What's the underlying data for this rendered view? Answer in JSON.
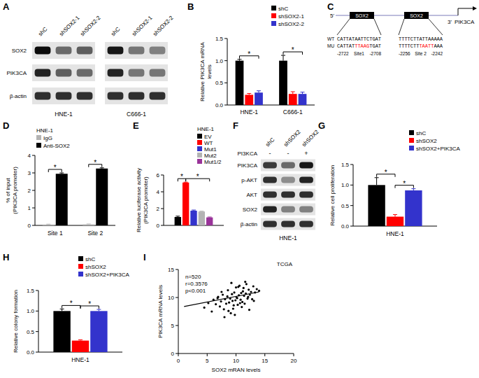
{
  "chart_data": [
    {
      "panel": "B",
      "type": "bar",
      "categories": [
        "HNE-1",
        "C666-1"
      ],
      "series": [
        {
          "name": "shC",
          "color": "#000000",
          "values": [
            1.0,
            1.0
          ],
          "errors": [
            0.03,
            0.12
          ]
        },
        {
          "name": "shSOX2-1",
          "color": "#ff0000",
          "values": [
            0.23,
            0.25
          ],
          "errors": [
            0.03,
            0.05
          ]
        },
        {
          "name": "shSOX2-2",
          "color": "#3333cc",
          "values": [
            0.28,
            0.25
          ],
          "errors": [
            0.04,
            0.04
          ]
        }
      ],
      "ylabel": [
        "Relative PIK3CA mRNA",
        "levels"
      ],
      "ylim": [
        0,
        1.5
      ],
      "yticks": [
        {
          "value": 0,
          "label": "0.0"
        },
        {
          "value": 0.5,
          "label": "0.5"
        },
        {
          "value": 1,
          "label": "1.0"
        },
        {
          "value": 1.5,
          "label": "1.5"
        }
      ],
      "legend": "upper right",
      "brackets": [
        {
          "from": [
            0,
            0
          ],
          "to": [
            0,
            2
          ],
          "label": "*"
        },
        {
          "from": [
            1,
            0
          ],
          "to": [
            1,
            2
          ],
          "label": "*"
        }
      ]
    },
    {
      "panel": "D",
      "type": "bar",
      "title": "HNE-1",
      "categories": [
        "Site 1",
        "Site 2"
      ],
      "series": [
        {
          "name": "IgG",
          "color": "#b3b3b3",
          "values": [
            0.05,
            0.06
          ],
          "errors": [
            0.02,
            0.02
          ]
        },
        {
          "name": "Anti-SOX2",
          "color": "#000000",
          "values": [
            2.95,
            3.25
          ],
          "errors": [
            0.05,
            0.04
          ]
        }
      ],
      "ylabel": [
        "% of input",
        "(PIK3CA promoter)"
      ],
      "ylim": [
        0,
        4
      ],
      "yticks": [
        0,
        1,
        2,
        3,
        4
      ],
      "legend": "upper left",
      "brackets": [
        {
          "from": [
            0,
            0
          ],
          "to": [
            0,
            1
          ],
          "label": "*"
        },
        {
          "from": [
            1,
            0
          ],
          "to": [
            1,
            1
          ],
          "label": "*"
        }
      ]
    },
    {
      "panel": "E",
      "type": "bar",
      "title": "HNE-1",
      "categories": [
        null
      ],
      "series": [
        {
          "name": "EV",
          "color": "#000000",
          "values": [
            1.0
          ],
          "errors": [
            0.1
          ]
        },
        {
          "name": "WT",
          "color": "#ff0000",
          "values": [
            5.1
          ],
          "errors": [
            0.05
          ]
        },
        {
          "name": "Mut1",
          "color": "#3333cc",
          "values": [
            1.75
          ],
          "errors": [
            0.08
          ]
        },
        {
          "name": "Mut2",
          "color": "#b3b3b3",
          "values": [
            1.65
          ],
          "errors": [
            0.05
          ]
        },
        {
          "name": "Mut1/2",
          "color": "#993399",
          "values": [
            0.95
          ],
          "errors": [
            0.05
          ]
        }
      ],
      "ylabel": [
        "Relative luciferase activity",
        "(PIK3CA promoter)"
      ],
      "ylim": [
        0,
        6
      ],
      "yticks": [
        0,
        2,
        4,
        6
      ],
      "legend": "upper right",
      "tick_labels": "y",
      "brackets": [
        {
          "from": [
            0,
            0
          ],
          "to": [
            0,
            1
          ],
          "label": "*"
        },
        {
          "from": [
            0,
            1
          ],
          "to": [
            0,
            4
          ],
          "label": "*"
        }
      ]
    },
    {
      "panel": "G",
      "type": "bar",
      "categories": [
        "HNE-1"
      ],
      "series": [
        {
          "name": "shC",
          "color": "#000000",
          "values": [
            1.0
          ],
          "errors": [
            0.18
          ]
        },
        {
          "name": "shSOX2",
          "color": "#ff0000",
          "values": [
            0.23
          ],
          "errors": [
            0.05
          ]
        },
        {
          "name": "shSOX2+PIK3CA",
          "color": "#3333cc",
          "values": [
            0.87
          ],
          "errors": [
            0.04
          ]
        }
      ],
      "ylabel": [
        "Relative cell proliferation"
      ],
      "ylim": [
        0,
        1.5
      ],
      "yticks": [
        {
          "value": 0,
          "label": "0.0"
        },
        {
          "value": 0.5,
          "label": "0.5"
        },
        {
          "value": 1,
          "label": "1.0"
        },
        {
          "value": 1.5,
          "label": "1.5"
        }
      ],
      "legend": "upper right",
      "brackets": [
        {
          "from": [
            0,
            0
          ],
          "to": [
            0,
            1
          ],
          "label": "*"
        },
        {
          "from": [
            0,
            1
          ],
          "to": [
            0,
            2
          ],
          "label": "*"
        }
      ]
    },
    {
      "panel": "H",
      "type": "bar",
      "categories": [
        "HNE-1"
      ],
      "series": [
        {
          "name": "shC",
          "color": "#000000",
          "values": [
            1.0
          ],
          "errors": [
            0.05
          ]
        },
        {
          "name": "shSOX2",
          "color": "#ff0000",
          "values": [
            0.28
          ],
          "errors": [
            0.02
          ]
        },
        {
          "name": "shSOX2+PIK3CA",
          "color": "#3333cc",
          "values": [
            1.0
          ],
          "errors": [
            0.04
          ]
        }
      ],
      "ylabel": [
        "Relative colony formation"
      ],
      "ylim": [
        0,
        1.5
      ],
      "yticks": [
        {
          "value": 0,
          "label": "0.0"
        },
        {
          "value": 0.5,
          "label": "0.5"
        },
        {
          "value": 1,
          "label": "1.0"
        },
        {
          "value": 1.5,
          "label": "1.5"
        }
      ],
      "legend": "upper right",
      "brackets": [
        {
          "from": [
            0,
            0
          ],
          "to": [
            0,
            1
          ],
          "label": "*"
        },
        {
          "from": [
            0,
            1
          ],
          "to": [
            0,
            2
          ],
          "label": "*"
        }
      ]
    },
    {
      "panel": "I",
      "type": "scatter",
      "color": "#000000",
      "marker": "circle",
      "x": [
        4.5,
        5.2,
        5.8,
        6.1,
        6.5,
        6.9,
        7.2,
        7.4,
        7.7,
        7.9,
        8.1,
        8.3,
        8.5,
        8.6,
        8.8,
        9.0,
        9.1,
        9.3,
        9.4,
        9.6,
        9.7,
        9.9,
        10.0,
        10.2,
        10.3,
        10.5,
        10.6,
        10.8,
        10.9,
        11.1,
        11.2,
        11.4,
        11.5,
        11.7,
        11.8,
        12.0,
        12.2,
        12.4,
        12.6,
        12.8,
        13.0,
        13.3,
        13.6,
        14.0,
        8.0,
        8.7,
        9.2,
        9.8,
        10.4,
        11.0,
        11.6,
        12.3,
        7.5,
        6.8,
        9.5,
        10.1,
        10.7,
        11.3,
        12.1,
        13.1
      ],
      "values": [
        8.2,
        9.0,
        7.5,
        9.6,
        8.8,
        10.1,
        8.4,
        9.3,
        10.5,
        7.9,
        9.7,
        8.9,
        10.2,
        11.3,
        9.1,
        9.8,
        7.2,
        10.6,
        9.4,
        8.6,
        10.9,
        9.5,
        11.8,
        9.9,
        8.7,
        10.4,
        12.1,
        9.6,
        10.8,
        9.2,
        11.1,
        10.3,
        8.9,
        10.7,
        12.4,
        9.8,
        11.4,
        10.5,
        11.0,
        9.7,
        12.0,
        10.9,
        11.5,
        11.2,
        6.5,
        7.6,
        12.6,
        6.9,
        11.9,
        8.3,
        12.8,
        7.8,
        11.0,
        9.9,
        8.0,
        10.0,
        9.0,
        11.7,
        10.1,
        9.4
      ],
      "xlim": [
        0,
        20
      ],
      "xticks": [
        0,
        5,
        10,
        15,
        20
      ],
      "ylim": [
        0,
        15
      ],
      "yticks": [
        0,
        5,
        10,
        15
      ],
      "xlabel": "SOX2 mRAN levels",
      "ylabel": [
        "PIK3CA mRNA levels"
      ],
      "annotations": [
        "n=520",
        "r=0.3576",
        "p<0.001",
        "TCGA"
      ],
      "fit_line": {
        "x": [
          1,
          14
        ],
        "y": [
          8.4,
          11.0
        ]
      }
    }
  ],
  "blots": [
    {
      "panel": "A",
      "row_labels": [
        "SOX2",
        "PIK3CA",
        "β-actin"
      ],
      "groups": [
        {
          "name": "HNE-1",
          "lanes": [
            "shC",
            "shSOX2-1",
            "shSOX2-2"
          ],
          "bands": [
            [
              0.95,
              0.55,
              0.6
            ],
            [
              0.85,
              0.6,
              0.55
            ],
            [
              0.8,
              0.8,
              0.8
            ]
          ]
        },
        {
          "name": "C666-1",
          "lanes": [
            "shC",
            "shSOX2-1",
            "shSOX2-2"
          ],
          "bands": [
            [
              0.9,
              0.5,
              0.45
            ],
            [
              0.85,
              0.5,
              0.5
            ],
            [
              0.8,
              0.8,
              0.8
            ]
          ]
        }
      ]
    },
    {
      "panel": "F",
      "treatment": {
        "label": "PI3KCA",
        "values": [
          "-",
          "-",
          "+"
        ]
      },
      "row_labels": [
        "PIK3CA",
        "p-AKT",
        "AKT",
        "SOX2",
        "β-actin"
      ],
      "groups": [
        {
          "name": "HNE-1",
          "lanes": [
            "shC",
            "shSOX2",
            "shSOX2"
          ],
          "bands": [
            [
              0.75,
              0.55,
              0.9
            ],
            [
              0.8,
              0.4,
              0.85
            ],
            [
              0.8,
              0.8,
              0.8
            ],
            [
              0.85,
              0.45,
              0.45
            ],
            [
              0.8,
              0.8,
              0.8
            ]
          ]
        }
      ]
    }
  ],
  "diagram": {
    "panel": "C",
    "five_prime": "5'",
    "three_prime": "3'",
    "gene": "PIK3CA",
    "row_labels": [
      "WT",
      "MU"
    ],
    "sites": [
      {
        "box": "SOX2",
        "name": "Site1",
        "start": -2722,
        "end": -2708,
        "wt": "CATTATAATTCTGAT",
        "mu": [
          {
            "text": "CATTAT",
            "mutated": false
          },
          {
            "text": "TTAAG",
            "mutated": true
          },
          {
            "text": "TGAT",
            "mutated": false
          }
        ]
      },
      {
        "box": "SOX2",
        "name": "Site 2",
        "start": -2256,
        "end": -2242,
        "wt": "TTTTCTTATTAAAAA",
        "mu": [
          {
            "text": "TTTTCTT",
            "mutated": false
          },
          {
            "text": "TAATT",
            "mutated": true
          },
          {
            "text": "AAA",
            "mutated": false
          }
        ]
      }
    ]
  }
}
